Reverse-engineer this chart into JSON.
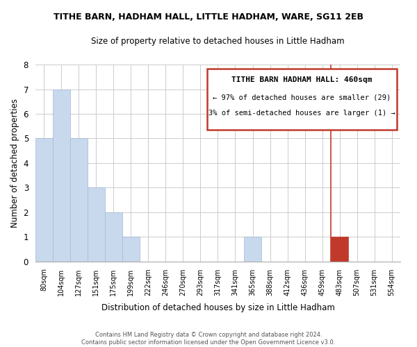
{
  "title": "TITHE BARN, HADHAM HALL, LITTLE HADHAM, WARE, SG11 2EB",
  "subtitle": "Size of property relative to detached houses in Little Hadham",
  "xlabel": "Distribution of detached houses by size in Little Hadham",
  "ylabel": "Number of detached properties",
  "bins": [
    "80sqm",
    "104sqm",
    "127sqm",
    "151sqm",
    "175sqm",
    "199sqm",
    "222sqm",
    "246sqm",
    "270sqm",
    "293sqm",
    "317sqm",
    "341sqm",
    "365sqm",
    "388sqm",
    "412sqm",
    "436sqm",
    "459sqm",
    "483sqm",
    "507sqm",
    "531sqm",
    "554sqm"
  ],
  "values": [
    5,
    7,
    5,
    3,
    2,
    1,
    0,
    0,
    0,
    0,
    0,
    0,
    1,
    0,
    0,
    0,
    0,
    1,
    0,
    0,
    0
  ],
  "highlight_bin_index": 17,
  "vline_index": 16,
  "bar_color_normal": "#c9d9ed",
  "bar_edge_normal": "#a0b8d8",
  "bar_color_highlight": "#c0392b",
  "bar_edge_highlight": "#c0392b",
  "ylim": [
    0,
    8
  ],
  "yticks": [
    0,
    1,
    2,
    3,
    4,
    5,
    6,
    7,
    8
  ],
  "grid_color": "#cccccc",
  "annotation_title": "TITHE BARN HADHAM HALL: 460sqm",
  "annotation_line1": "← 97% of detached houses are smaller (29)",
  "annotation_line2": "3% of semi-detached houses are larger (1) →",
  "annotation_box_color": "#c0392b",
  "vline_color": "#c0392b",
  "footer_line1": "Contains HM Land Registry data © Crown copyright and database right 2024.",
  "footer_line2": "Contains public sector information licensed under the Open Government Licence v3.0.",
  "bg_color": "#ffffff"
}
